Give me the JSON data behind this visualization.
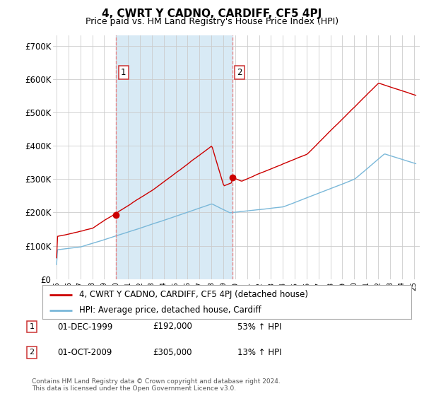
{
  "title": "4, CWRT Y CADNO, CARDIFF, CF5 4PJ",
  "subtitle": "Price paid vs. HM Land Registry's House Price Index (HPI)",
  "ylabel_ticks": [
    "£0",
    "£100K",
    "£200K",
    "£300K",
    "£400K",
    "£500K",
    "£600K",
    "£700K"
  ],
  "ytick_values": [
    0,
    100000,
    200000,
    300000,
    400000,
    500000,
    600000,
    700000
  ],
  "ylim": [
    0,
    730000
  ],
  "xlim_start": 1994.7,
  "xlim_end": 2025.5,
  "purchase1_x": 2000.0,
  "purchase1_price": 192000,
  "purchase2_x": 2009.75,
  "purchase2_price": 305000,
  "hpi_color": "#7ab8d9",
  "price_color": "#cc0000",
  "vline_color": "#e88080",
  "shade_color": "#d8eaf5",
  "grid_color": "#cccccc",
  "legend_label_price": "4, CWRT Y CADNO, CARDIFF, CF5 4PJ (detached house)",
  "legend_label_hpi": "HPI: Average price, detached house, Cardiff",
  "table_rows": [
    {
      "num": "1",
      "date": "01-DEC-1999",
      "price": "£192,000",
      "change": "53% ↑ HPI"
    },
    {
      "num": "2",
      "date": "01-OCT-2009",
      "price": "£305,000",
      "change": "13% ↑ HPI"
    }
  ],
  "footer": "Contains HM Land Registry data © Crown copyright and database right 2024.\nThis data is licensed under the Open Government Licence v3.0.",
  "background_color": "#ffffff"
}
